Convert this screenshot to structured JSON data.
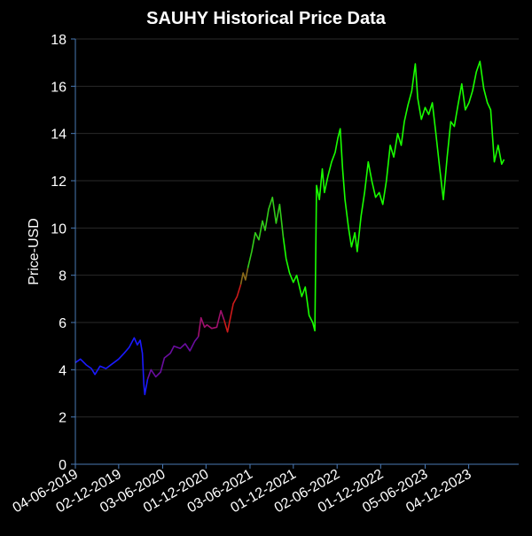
{
  "chart_data": {
    "type": "line",
    "title": "SAUHY Historical Price Data",
    "xlabel": "",
    "ylabel": "Price-USD",
    "ylim": [
      0,
      18
    ],
    "yticks": [
      0,
      2,
      4,
      6,
      8,
      10,
      12,
      14,
      16,
      18
    ],
    "xlim": [
      "2019-06-04",
      "2024-06-30"
    ],
    "xticks": [
      {
        "date": "2019-06-04",
        "label": "04-06-2019"
      },
      {
        "date": "2019-12-02",
        "label": "02-12-2019"
      },
      {
        "date": "2020-06-03",
        "label": "03-06-2020"
      },
      {
        "date": "2020-12-01",
        "label": "01-12-2020"
      },
      {
        "date": "2021-06-03",
        "label": "03-06-2021"
      },
      {
        "date": "2021-12-01",
        "label": "01-12-2021"
      },
      {
        "date": "2022-06-02",
        "label": "02-06-2022"
      },
      {
        "date": "2022-12-01",
        "label": "01-12-2022"
      },
      {
        "date": "2023-06-05",
        "label": "05-06-2023"
      },
      {
        "date": "2023-12-04",
        "label": "04-12-2023"
      }
    ],
    "grid": true,
    "colors": {
      "background": "#000000",
      "grid": "#2a2a2a",
      "axis": "#4a7ab5",
      "text": "#ffffff"
    },
    "series": [
      {
        "color": "#1a1aff",
        "points": [
          [
            "2019-06-04",
            4.3
          ],
          [
            "2019-06-25",
            4.45
          ],
          [
            "2019-07-20",
            4.2
          ],
          [
            "2019-08-10",
            4.05
          ],
          [
            "2019-08-25",
            3.8
          ],
          [
            "2019-09-15",
            4.15
          ],
          [
            "2019-10-10",
            4.05
          ],
          [
            "2019-11-05",
            4.25
          ],
          [
            "2019-12-02",
            4.45
          ],
          [
            "2019-12-25",
            4.7
          ],
          [
            "2020-01-15",
            4.95
          ],
          [
            "2020-02-05",
            5.35
          ],
          [
            "2020-02-18",
            5.05
          ],
          [
            "2020-03-01",
            5.25
          ],
          [
            "2020-03-10",
            4.7
          ],
          [
            "2020-03-16",
            3.4
          ],
          [
            "2020-03-20",
            2.95
          ],
          [
            "2020-04-01",
            3.6
          ]
        ]
      },
      {
        "color": "#6a0d9f",
        "points": [
          [
            "2020-04-01",
            3.6
          ],
          [
            "2020-04-15",
            4.0
          ],
          [
            "2020-05-05",
            3.7
          ],
          [
            "2020-05-25",
            3.9
          ],
          [
            "2020-06-10",
            4.5
          ],
          [
            "2020-07-05",
            4.7
          ],
          [
            "2020-07-20",
            5.0
          ],
          [
            "2020-08-15",
            4.9
          ],
          [
            "2020-09-05",
            5.1
          ],
          [
            "2020-09-25",
            4.8
          ],
          [
            "2020-10-15",
            5.2
          ],
          [
            "2020-10-30",
            5.4
          ]
        ]
      },
      {
        "color": "#a0106e",
        "points": [
          [
            "2020-10-30",
            5.4
          ],
          [
            "2020-11-10",
            6.2
          ],
          [
            "2020-11-25",
            5.8
          ],
          [
            "2020-12-05",
            5.9
          ],
          [
            "2020-12-25",
            5.75
          ],
          [
            "2021-01-15",
            5.8
          ],
          [
            "2021-02-01",
            6.5
          ],
          [
            "2021-02-15",
            6.1
          ]
        ]
      },
      {
        "color": "#cc1a1a",
        "points": [
          [
            "2021-02-15",
            6.1
          ],
          [
            "2021-03-01",
            5.6
          ],
          [
            "2021-03-15",
            6.3
          ],
          [
            "2021-03-25",
            6.8
          ],
          [
            "2021-04-10",
            7.1
          ],
          [
            "2021-04-25",
            7.6
          ]
        ]
      },
      {
        "color": "#8a6a1a",
        "points": [
          [
            "2021-04-25",
            7.6
          ],
          [
            "2021-05-05",
            8.1
          ],
          [
            "2021-05-15",
            7.8
          ],
          [
            "2021-05-25",
            8.3
          ]
        ]
      },
      {
        "color": "#33cc1a",
        "points": [
          [
            "2021-05-25",
            8.3
          ],
          [
            "2021-06-10",
            9.0
          ],
          [
            "2021-06-25",
            9.8
          ],
          [
            "2021-07-10",
            9.5
          ],
          [
            "2021-07-25",
            10.3
          ],
          [
            "2021-08-05",
            9.9
          ],
          [
            "2021-08-20",
            10.8
          ],
          [
            "2021-09-05",
            11.3
          ],
          [
            "2021-09-20",
            10.2
          ],
          [
            "2021-10-05",
            11.0
          ],
          [
            "2021-10-20",
            9.6
          ]
        ]
      },
      {
        "color": "#19ff00",
        "points": [
          [
            "2021-10-20",
            9.6
          ],
          [
            "2021-11-01",
            8.7
          ],
          [
            "2021-11-15",
            8.1
          ],
          [
            "2021-12-01",
            7.7
          ],
          [
            "2021-12-15",
            8.0
          ],
          [
            "2022-01-05",
            7.1
          ],
          [
            "2022-01-20",
            7.5
          ],
          [
            "2022-02-05",
            6.3
          ],
          [
            "2022-02-20",
            6.0
          ],
          [
            "2022-03-01",
            5.65
          ],
          [
            "2022-03-08",
            11.8
          ],
          [
            "2022-03-20",
            11.2
          ],
          [
            "2022-04-01",
            12.5
          ],
          [
            "2022-04-10",
            11.5
          ],
          [
            "2022-04-25",
            12.2
          ],
          [
            "2022-05-10",
            12.8
          ],
          [
            "2022-05-25",
            13.2
          ],
          [
            "2022-06-05",
            13.8
          ],
          [
            "2022-06-15",
            14.2
          ],
          [
            "2022-06-25",
            12.5
          ],
          [
            "2022-07-05",
            11.2
          ],
          [
            "2022-07-20",
            10.0
          ],
          [
            "2022-08-01",
            9.2
          ],
          [
            "2022-08-15",
            9.8
          ],
          [
            "2022-08-25",
            9.0
          ],
          [
            "2022-09-10",
            10.5
          ],
          [
            "2022-09-25",
            11.5
          ],
          [
            "2022-10-10",
            12.8
          ],
          [
            "2022-10-25",
            12.0
          ],
          [
            "2022-11-10",
            11.3
          ],
          [
            "2022-11-25",
            11.5
          ],
          [
            "2022-12-10",
            11.0
          ],
          [
            "2022-12-25",
            12.0
          ],
          [
            "2023-01-10",
            13.5
          ],
          [
            "2023-01-25",
            13.0
          ],
          [
            "2023-02-10",
            14.0
          ],
          [
            "2023-02-25",
            13.5
          ],
          [
            "2023-03-10",
            14.5
          ],
          [
            "2023-03-25",
            15.2
          ],
          [
            "2023-04-10",
            15.8
          ],
          [
            "2023-04-25",
            16.95
          ],
          [
            "2023-05-05",
            15.5
          ],
          [
            "2023-05-20",
            14.6
          ],
          [
            "2023-06-05",
            15.1
          ],
          [
            "2023-06-20",
            14.8
          ],
          [
            "2023-07-05",
            15.3
          ],
          [
            "2023-07-20",
            14.0
          ],
          [
            "2023-08-05",
            12.5
          ],
          [
            "2023-08-20",
            11.2
          ],
          [
            "2023-09-05",
            13.0
          ],
          [
            "2023-09-20",
            14.5
          ],
          [
            "2023-10-05",
            14.3
          ],
          [
            "2023-10-20",
            15.2
          ],
          [
            "2023-11-05",
            16.1
          ],
          [
            "2023-11-20",
            15.0
          ],
          [
            "2023-12-05",
            15.3
          ],
          [
            "2023-12-20",
            15.8
          ],
          [
            "2024-01-05",
            16.6
          ],
          [
            "2024-01-20",
            17.05
          ],
          [
            "2024-02-05",
            15.9
          ],
          [
            "2024-02-20",
            15.3
          ],
          [
            "2024-03-05",
            15.0
          ],
          [
            "2024-03-20",
            12.8
          ],
          [
            "2024-04-05",
            13.5
          ],
          [
            "2024-04-20",
            12.7
          ],
          [
            "2024-04-30",
            12.9
          ]
        ]
      }
    ]
  }
}
